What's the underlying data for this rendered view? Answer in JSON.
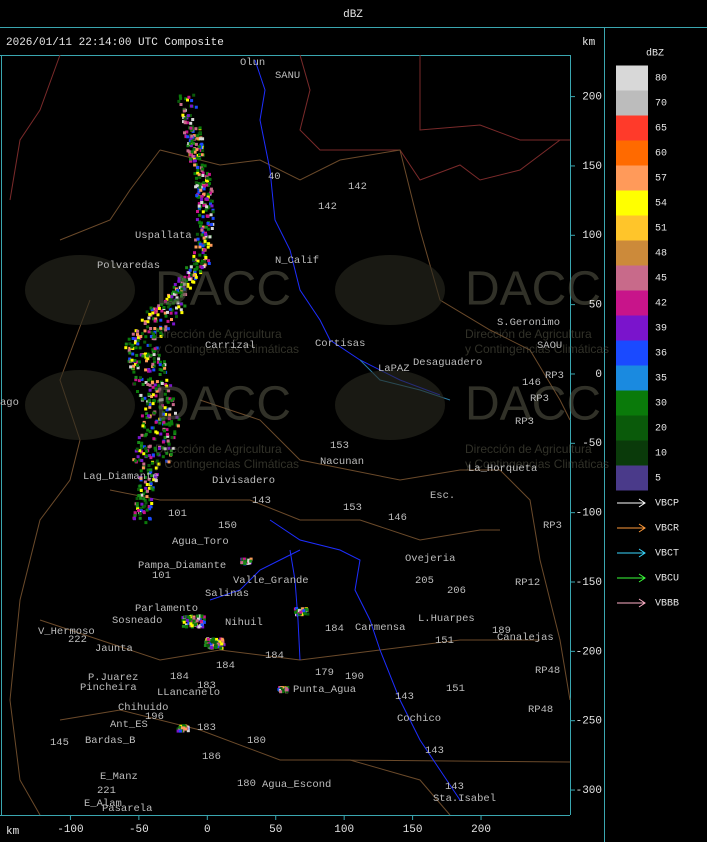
{
  "header": {
    "title": "dBZ"
  },
  "map": {
    "title": "2026/01/11 22:14:00 UTC Composite",
    "x_unit": "km",
    "y_unit": "km",
    "xlim": [
      -150,
      265
    ],
    "ylim": [
      -318,
      230
    ],
    "xticks": [
      -100,
      -50,
      0,
      50,
      100,
      150,
      200
    ],
    "yticks": [
      200,
      150,
      100,
      50,
      0,
      -50,
      -100,
      -150,
      -200,
      -250,
      -300
    ],
    "places": [
      "Olun",
      "SANU",
      "40",
      "142",
      "142",
      "Uspallata",
      "N_Calif",
      "Polvaredas",
      "S.Geronimo",
      "SAOU",
      "Carrizal",
      "Cortisas",
      "Desaguadero",
      "LaPAZ",
      "RP3",
      "146",
      "RP3",
      "RP3",
      "153",
      "Nacunan",
      "La_Horqueta",
      "Divisadero",
      "Lag_Diamante",
      "143",
      "153",
      "146",
      "Esc.",
      "101",
      "RP3",
      "Agua_Toro",
      "150",
      "Pampa_Diamante",
      "101",
      "Ovejeria",
      "205",
      "206",
      "RP12",
      "Valle_Grande",
      "Salinas",
      "Parlamento",
      "Sosneado",
      "Nihuil",
      "L.Huarpes",
      "V_Hermoso",
      "184",
      "Carmensa",
      "151",
      "189",
      "Canalejas",
      "222",
      "Jaunta",
      "184",
      "184",
      "184",
      "179",
      "190",
      "RP48",
      "P.Juarez",
      "Pincheira",
      "Punta_Agua",
      "183",
      "151",
      "LLancanelo",
      "143",
      "RP48",
      "Chihuido",
      "196",
      "Ant_ES",
      "183",
      "Cochico",
      "145",
      "Bardas_B",
      "180",
      "186",
      "143",
      "E_Manz",
      "180",
      "Agua_Escond",
      "143",
      "221",
      "Sta.Isabel",
      "E_Alam",
      "Pasarela",
      "ago"
    ]
  },
  "watermark": {
    "logo": "DACC",
    "line1": "Dirección de Agricultura",
    "line2": "y Contingencias Climáticas"
  },
  "legend": {
    "title": "dBZ",
    "items": [
      {
        "label": "80",
        "color": "#d8d8d8"
      },
      {
        "label": "70",
        "color": "#bcbcbc"
      },
      {
        "label": "65",
        "color": "#ff3a2a"
      },
      {
        "label": "60",
        "color": "#ff6a00"
      },
      {
        "label": "57",
        "color": "#ff9a5a"
      },
      {
        "label": "54",
        "color": "#ffff00"
      },
      {
        "label": "51",
        "color": "#ffc52a"
      },
      {
        "label": "48",
        "color": "#cc8a3a"
      },
      {
        "label": "45",
        "color": "#c86a8a"
      },
      {
        "label": "42",
        "color": "#c8148a"
      },
      {
        "label": "39",
        "color": "#7a14cc"
      },
      {
        "label": "36",
        "color": "#1a4aff"
      },
      {
        "label": "35",
        "color": "#1a8ae0"
      },
      {
        "label": "30",
        "color": "#0a7a0a"
      },
      {
        "label": "20",
        "color": "#0a5a0a"
      },
      {
        "label": "10",
        "color": "#0a3a0a"
      },
      {
        "label": "5",
        "color": "#4a3a8a"
      }
    ]
  },
  "radars": [
    {
      "name": "VBCP",
      "color": "#ffffff"
    },
    {
      "name": "VBCR",
      "color": "#ff9a3a"
    },
    {
      "name": "VBCT",
      "color": "#3ad8ff"
    },
    {
      "name": "VBCU",
      "color": "#3aff3a"
    },
    {
      "name": "VBBB",
      "color": "#ffb0c8"
    }
  ]
}
